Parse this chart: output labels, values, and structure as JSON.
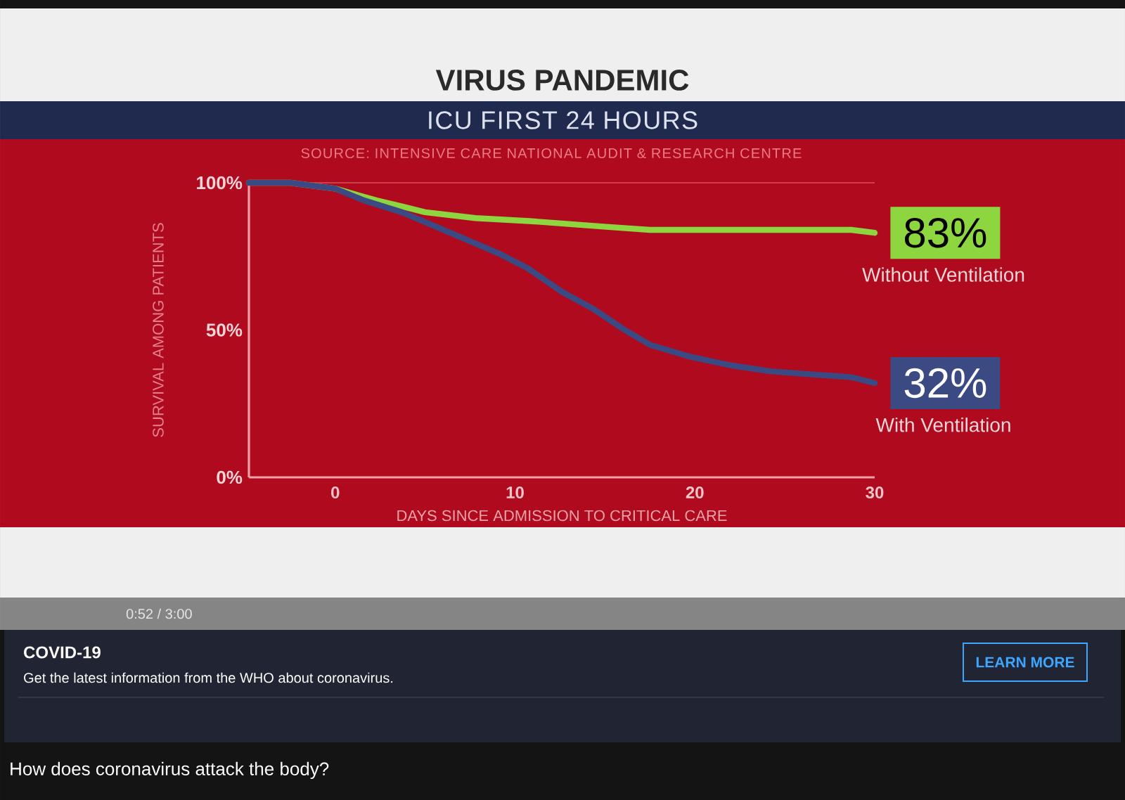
{
  "chart_data": {
    "type": "line",
    "title": "VIRUS PANDEMIC",
    "subtitle": "ICU FIRST 24 HOURS",
    "xlabel": "DAYS SINCE ADMISSION TO CRITICAL CARE",
    "ylabel": "SURVIVAL AMONG PATIENTS",
    "annotations": [
      "SOURCE: INTENSIVE CARE NATIONAL AUDIT & RESEARCH CENTRE",
      "0:52 / 3:00",
      "COVID-19",
      "Get the latest information from the WHO about coronavirus.",
      "LEARN MORE",
      "How does coronavirus attack the body?"
    ],
    "series": [
      {
        "name": "Without Ventilation",
        "color": "#8ed63f",
        "x": [
          -4.8,
          -2.5,
          0,
          2.3,
          3.7,
          5,
          7.8,
          10.8,
          13,
          15.2,
          17.5,
          19.7,
          24.2,
          28.7,
          30
        ],
        "values": [
          100,
          100,
          98,
          94,
          92,
          90,
          88,
          87,
          86,
          85,
          84,
          84,
          84,
          84,
          83
        ],
        "value_labels": [
          null,
          null,
          null,
          null,
          null,
          null,
          null,
          null,
          null,
          null,
          null,
          null,
          null,
          null,
          "83%"
        ]
      },
      {
        "name": "With Ventilation",
        "color": "#3b4a82",
        "x": [
          -4.8,
          -2.5,
          0,
          1.6,
          3.7,
          6.4,
          9.1,
          10.7,
          12.6,
          14.4,
          16.1,
          17.5,
          18.6,
          19.7,
          22,
          24.2,
          26.4,
          28.7,
          30
        ],
        "values": [
          100,
          100,
          98,
          94,
          90,
          83,
          76,
          71,
          63,
          57,
          50,
          45,
          43,
          41,
          38,
          36,
          35,
          34,
          32
        ],
        "value_labels": [
          null,
          null,
          null,
          null,
          null,
          null,
          null,
          null,
          null,
          null,
          null,
          null,
          null,
          null,
          null,
          null,
          null,
          null,
          "32%"
        ]
      }
    ],
    "xlim": [
      -4.8,
      30
    ],
    "ylim": [
      0,
      100
    ],
    "xticks": [
      0,
      10,
      20,
      30
    ],
    "yticks": [
      {
        "value": 0,
        "label": "0%"
      },
      {
        "value": 50,
        "label": "50%"
      },
      {
        "value": 100,
        "label": "100%"
      }
    ],
    "ref_lines": [
      {
        "axis": "y",
        "value": 100,
        "color": "#d8505e"
      }
    ],
    "line_style": "solid"
  }
}
